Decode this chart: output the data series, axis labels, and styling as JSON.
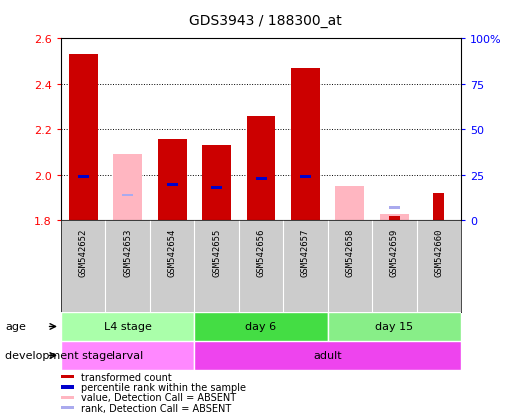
{
  "title": "GDS3943 / 188300_at",
  "samples": [
    "GSM542652",
    "GSM542653",
    "GSM542654",
    "GSM542655",
    "GSM542656",
    "GSM542657",
    "GSM542658",
    "GSM542659",
    "GSM542660"
  ],
  "ylim_left": [
    1.8,
    2.6
  ],
  "ylim_right": [
    0,
    100
  ],
  "yticks_left": [
    1.8,
    2.0,
    2.2,
    2.4,
    2.6
  ],
  "yticks_right": [
    0,
    25,
    50,
    75,
    100
  ],
  "ytick_labels_right": [
    "0",
    "25",
    "50",
    "75",
    "100%"
  ],
  "red_bars": [
    2.53,
    1.8,
    2.16,
    2.13,
    2.26,
    2.47,
    1.8,
    1.82,
    1.92
  ],
  "blue_bars_pct": [
    24,
    0,
    20,
    18,
    23,
    24,
    0,
    0,
    0
  ],
  "pink_bars": [
    0,
    2.09,
    0,
    0,
    0,
    0,
    1.95,
    1.83,
    0
  ],
  "lightblue_bars_pct": [
    0,
    14,
    0,
    0,
    0,
    0,
    0,
    7,
    0
  ],
  "absent_red": [
    false,
    true,
    false,
    false,
    false,
    false,
    true,
    true,
    true
  ],
  "bar_base": 1.8,
  "age_groups": [
    {
      "label": "L4 stage",
      "start": 0,
      "end": 3,
      "color": "#AAFFAA"
    },
    {
      "label": "day 6",
      "start": 3,
      "end": 6,
      "color": "#44DD44"
    },
    {
      "label": "day 15",
      "start": 6,
      "end": 9,
      "color": "#88EE88"
    }
  ],
  "dev_groups": [
    {
      "label": "larval",
      "start": 0,
      "end": 3,
      "color": "#FF88FF"
    },
    {
      "label": "adult",
      "start": 3,
      "end": 9,
      "color": "#EE44EE"
    }
  ],
  "legend_items": [
    {
      "color": "#CC0000",
      "label": "transformed count"
    },
    {
      "color": "#0000CC",
      "label": "percentile rank within the sample"
    },
    {
      "color": "#FFB6C1",
      "label": "value, Detection Call = ABSENT"
    },
    {
      "color": "#AAAAEE",
      "label": "rank, Detection Call = ABSENT"
    }
  ],
  "age_label": "age",
  "dev_label": "development stage",
  "background_color": "#FFFFFF",
  "bar_width": 0.65
}
